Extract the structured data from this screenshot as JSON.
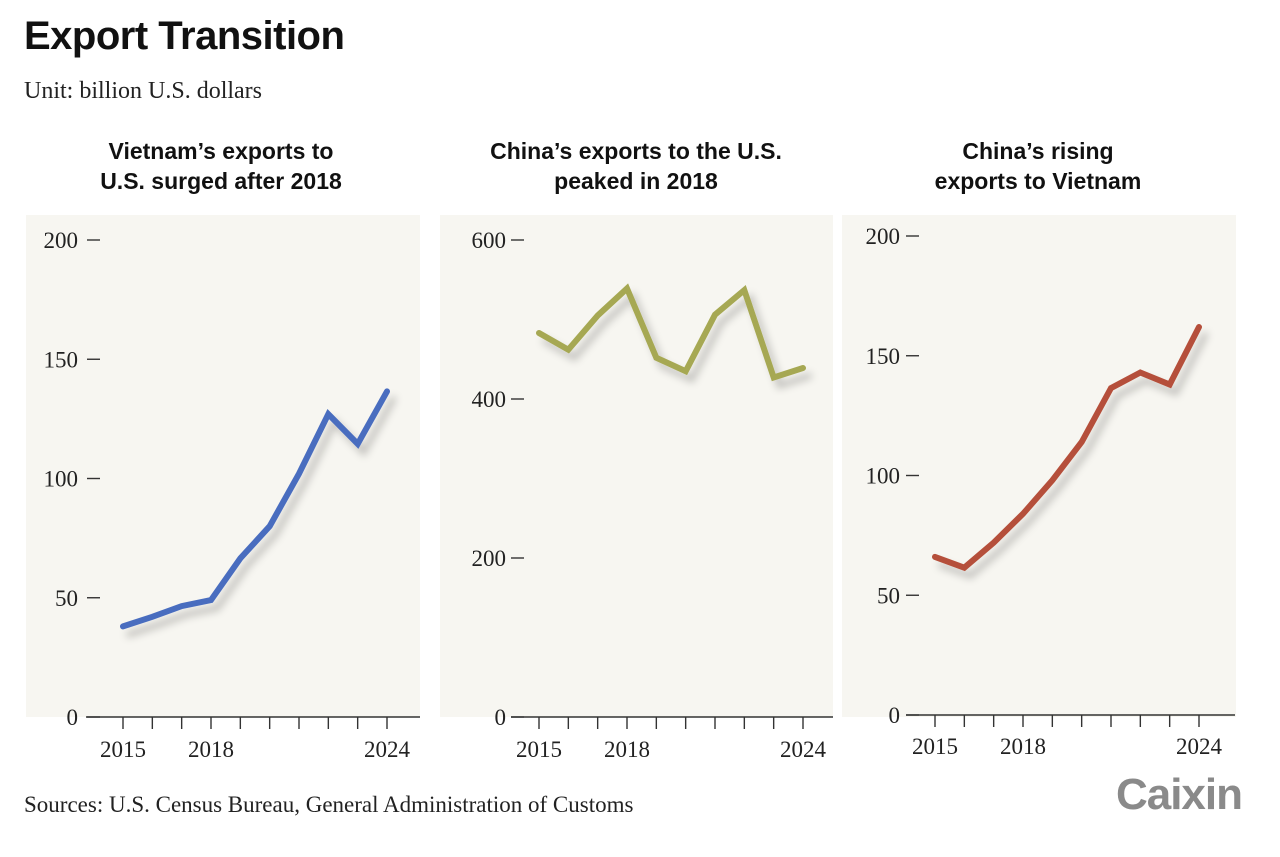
{
  "header": {
    "title": "Export Transition",
    "subtitle": "Unit: billion U.S. dollars"
  },
  "footer": {
    "source": "Sources: U.S. Census Bureau, General Administration of Customs",
    "logo_text": "Caixin"
  },
  "colors": {
    "panel_background": "#f7f6f1",
    "axis": "#333333"
  },
  "chart_data": [
    {
      "type": "line",
      "title_lines": [
        "Vietnam’s exports to",
        "U.S. surged after 2018"
      ],
      "x": [
        2015,
        2016,
        2017,
        2018,
        2019,
        2020,
        2021,
        2022,
        2023,
        2024
      ],
      "series": [
        {
          "color": "#4a6dbf",
          "values": [
            38,
            42,
            46.5,
            49,
            66.5,
            80,
            102,
            127,
            114.5,
            136.5
          ]
        }
      ],
      "ylim": [
        0,
        200
      ],
      "yticks": [
        0,
        50,
        100,
        150,
        200
      ],
      "xtick_labels": [
        "2015",
        "2018",
        "2024"
      ],
      "grid": false
    },
    {
      "type": "line",
      "title_lines": [
        "China’s exports to the U.S.",
        "peaked in 2018"
      ],
      "x": [
        2015,
        2016,
        2017,
        2018,
        2019,
        2020,
        2021,
        2022,
        2023,
        2024
      ],
      "series": [
        {
          "color": "#a6a852",
          "values": [
            483,
            462,
            505,
            539,
            452,
            435,
            506,
            537,
            427,
            439
          ]
        }
      ],
      "ylim": [
        0,
        600
      ],
      "yticks": [
        0,
        200,
        400,
        600
      ],
      "xtick_labels": [
        "2015",
        "2018",
        "2024"
      ],
      "grid": false
    },
    {
      "type": "line",
      "title_lines": [
        "China’s rising",
        "exports to Vietnam"
      ],
      "x": [
        2015,
        2016,
        2017,
        2018,
        2019,
        2020,
        2021,
        2022,
        2023,
        2024
      ],
      "series": [
        {
          "color": "#b5503a",
          "values": [
            66,
            61.5,
            72,
            84,
            98,
            114,
            136.5,
            143,
            138,
            162
          ]
        }
      ],
      "ylim": [
        0,
        200
      ],
      "yticks": [
        0,
        50,
        100,
        150,
        200
      ],
      "xtick_labels": [
        "2015",
        "2018",
        "2024"
      ],
      "grid": false
    }
  ]
}
